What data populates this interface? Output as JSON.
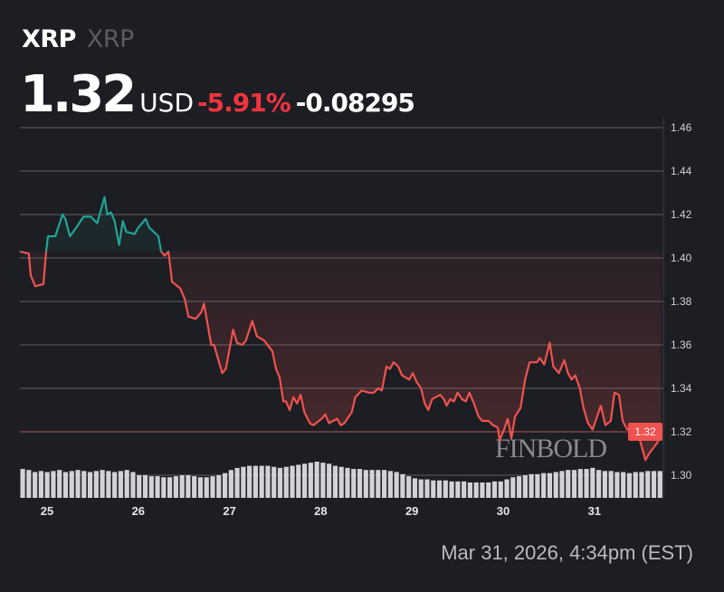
{
  "header": {
    "symbol": "XRP",
    "name": "XRP"
  },
  "quote": {
    "price": "1.32",
    "currency": "USD",
    "change_pct": "-5.91%",
    "change_abs": "-0.08295"
  },
  "timestamp": "Mar 31, 2026, 4:34pm (EST)",
  "watermark": "FINBOLD",
  "colors": {
    "background": "#1c1e23",
    "up": "#22a395",
    "down": "#f0524f",
    "grid": "#5f6064",
    "volume": "#d2d3d7",
    "change_text": "#f2343f"
  },
  "chart_data": {
    "type": "line",
    "title": "",
    "xlabel": "",
    "ylabel": "",
    "x_ticks": [
      25,
      26,
      27,
      28,
      29,
      30,
      31
    ],
    "x_tick_labels": [
      "25",
      "26",
      "27",
      "28",
      "29",
      "30",
      "31"
    ],
    "xlim": [
      24.7,
      31.76
    ],
    "y_ticks": [
      1.3,
      1.32,
      1.34,
      1.36,
      1.38,
      1.4,
      1.42,
      1.44,
      1.46
    ],
    "y_tick_labels": [
      "1.30",
      "1.32",
      "1.34",
      "1.36",
      "1.38",
      "1.40",
      "1.42",
      "1.44",
      "1.46"
    ],
    "ylim": [
      1.288,
      1.46
    ],
    "baseline": 1.403,
    "grid": true,
    "last_price_label": "1.32",
    "x": [
      24.7,
      24.8,
      24.82,
      24.87,
      24.96,
      24.99,
      25.01,
      25.09,
      25.17,
      25.2,
      25.25,
      25.32,
      25.4,
      25.48,
      25.55,
      25.63,
      25.66,
      25.7,
      25.74,
      25.79,
      25.83,
      25.87,
      25.96,
      26.0,
      26.08,
      26.12,
      26.22,
      26.25,
      26.29,
      26.33,
      26.37,
      26.46,
      26.51,
      26.55,
      26.63,
      26.69,
      26.72,
      26.8,
      26.83,
      26.92,
      26.96,
      27.04,
      27.08,
      27.14,
      27.18,
      27.25,
      27.3,
      27.38,
      27.47,
      27.51,
      27.55,
      27.59,
      27.62,
      27.66,
      27.7,
      27.74,
      27.78,
      27.82,
      27.88,
      27.92,
      28.01,
      28.05,
      28.09,
      28.18,
      28.22,
      28.26,
      28.34,
      28.38,
      28.45,
      28.53,
      28.58,
      28.63,
      28.67,
      28.72,
      28.76,
      28.8,
      28.85,
      28.89,
      28.97,
      29.01,
      29.05,
      29.1,
      29.14,
      29.18,
      29.22,
      29.31,
      29.35,
      29.38,
      29.42,
      29.46,
      29.5,
      29.55,
      29.59,
      29.63,
      29.68,
      29.73,
      29.77,
      29.84,
      29.89,
      29.94,
      29.96,
      30.01,
      30.05,
      30.09,
      30.13,
      30.19,
      30.24,
      30.29,
      30.37,
      30.4,
      30.45,
      30.51,
      30.55,
      30.61,
      30.67,
      30.71,
      30.75,
      30.79,
      30.84,
      30.88,
      30.93,
      30.98,
      31.07,
      31.12,
      31.18,
      31.22,
      31.27,
      31.31,
      31.36,
      31.44,
      31.48,
      31.56,
      31.6,
      31.69,
      31.73
    ],
    "y": [
      1.403,
      1.402,
      1.392,
      1.387,
      1.388,
      1.403,
      1.41,
      1.41,
      1.42,
      1.418,
      1.41,
      1.414,
      1.419,
      1.419,
      1.416,
      1.428,
      1.42,
      1.421,
      1.417,
      1.406,
      1.417,
      1.412,
      1.411,
      1.414,
      1.418,
      1.414,
      1.41,
      1.403,
      1.401,
      1.403,
      1.389,
      1.386,
      1.381,
      1.373,
      1.372,
      1.375,
      1.379,
      1.36,
      1.36,
      1.347,
      1.349,
      1.367,
      1.361,
      1.36,
      1.362,
      1.371,
      1.364,
      1.362,
      1.357,
      1.349,
      1.345,
      1.334,
      1.334,
      1.33,
      1.336,
      1.333,
      1.337,
      1.329,
      1.324,
      1.323,
      1.326,
      1.328,
      1.324,
      1.326,
      1.323,
      1.324,
      1.329,
      1.336,
      1.339,
      1.338,
      1.338,
      1.34,
      1.339,
      1.35,
      1.349,
      1.352,
      1.35,
      1.346,
      1.344,
      1.347,
      1.343,
      1.34,
      1.333,
      1.33,
      1.335,
      1.337,
      1.335,
      1.332,
      1.335,
      1.334,
      1.338,
      1.335,
      1.334,
      1.338,
      1.333,
      1.327,
      1.325,
      1.325,
      1.323,
      1.322,
      1.316,
      1.321,
      1.326,
      1.317,
      1.327,
      1.331,
      1.344,
      1.352,
      1.352,
      1.354,
      1.351,
      1.361,
      1.35,
      1.347,
      1.353,
      1.347,
      1.344,
      1.346,
      1.34,
      1.331,
      1.324,
      1.321,
      1.332,
      1.323,
      1.325,
      1.338,
      1.337,
      1.325,
      1.321,
      1.323,
      1.319,
      1.307,
      1.31,
      1.315,
      1.32
    ],
    "volume_relative": [
      85,
      84,
      82,
      83,
      82,
      83,
      84,
      82,
      83,
      84,
      83,
      82,
      83,
      84,
      83,
      82,
      83,
      84,
      82,
      79,
      79,
      78,
      78,
      77,
      77,
      78,
      79,
      79,
      78,
      77,
      77,
      78,
      79,
      81,
      84,
      86,
      87,
      88,
      88,
      88,
      88,
      87,
      86,
      87,
      88,
      89,
      90,
      91,
      92,
      91,
      90,
      88,
      87,
      86,
      85,
      85,
      84,
      84,
      84,
      84,
      83,
      82,
      80,
      78,
      76,
      75,
      75,
      74,
      74,
      74,
      73,
      73,
      73,
      72,
      72,
      72,
      72,
      73,
      73,
      75,
      77,
      78,
      79,
      80,
      80,
      81,
      81,
      82,
      83,
      84,
      84,
      85,
      85,
      86,
      84,
      83,
      83,
      82,
      82,
      81,
      82,
      82,
      83,
      83,
      83
    ]
  }
}
